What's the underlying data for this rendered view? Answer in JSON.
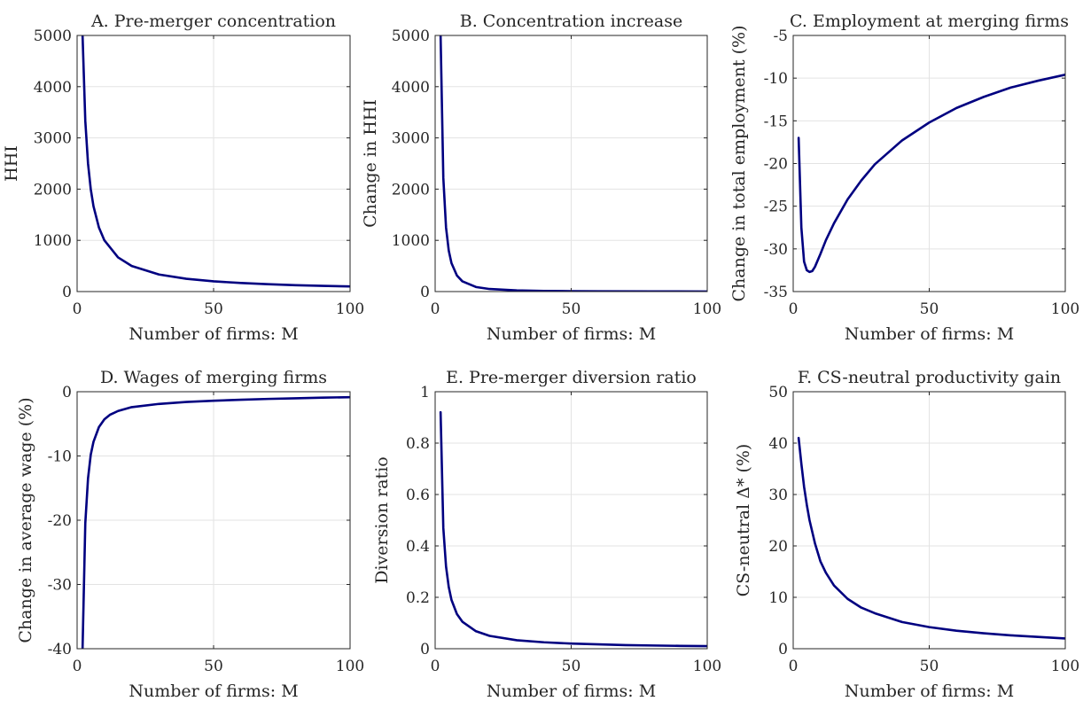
{
  "colors": {
    "line": "#000080",
    "axis": "#262626",
    "grid": "#e3e3e3",
    "background": "#ffffff"
  },
  "chart_data": [
    {
      "panel": "A",
      "type": "line",
      "title": "A. Pre-merger concentration",
      "xlabel": "Number of firms: M",
      "ylabel": "HHI",
      "xlim": [
        0,
        100
      ],
      "ylim": [
        0,
        5000
      ],
      "xticks": [
        0,
        50,
        100
      ],
      "yticks": [
        0,
        1000,
        2000,
        3000,
        4000,
        5000
      ],
      "ytick_labels": [
        "0",
        "1000",
        "2000",
        "3000",
        "4000",
        "5000"
      ],
      "grid": true,
      "x": [
        2,
        3,
        4,
        5,
        6,
        8,
        10,
        15,
        20,
        30,
        40,
        50,
        60,
        70,
        80,
        90,
        100
      ],
      "y": [
        5000,
        3333,
        2500,
        2000,
        1667,
        1250,
        1000,
        667,
        500,
        333,
        250,
        200,
        167,
        143,
        125,
        111,
        100
      ]
    },
    {
      "panel": "B",
      "type": "line",
      "title": "B. Concentration increase",
      "xlabel": "Number of firms: M",
      "ylabel": "Change in HHI",
      "xlim": [
        0,
        100
      ],
      "ylim": [
        0,
        5000
      ],
      "xticks": [
        0,
        50,
        100
      ],
      "yticks": [
        0,
        1000,
        2000,
        3000,
        4000,
        5000
      ],
      "ytick_labels": [
        "0",
        "1000",
        "2000",
        "3000",
        "4000",
        "5000"
      ],
      "grid": true,
      "x": [
        2,
        3,
        4,
        5,
        6,
        8,
        10,
        15,
        20,
        30,
        40,
        50,
        60,
        80,
        100
      ],
      "y": [
        5000,
        2222,
        1250,
        800,
        556,
        313,
        200,
        89,
        50,
        22,
        12.5,
        8,
        5.6,
        3.1,
        2
      ]
    },
    {
      "panel": "C",
      "type": "line",
      "title": "C. Employment at merging firms",
      "xlabel": "Number of firms: M",
      "ylabel": "Change in total employment (%)",
      "xlim": [
        0,
        100
      ],
      "ylim": [
        -35,
        -5
      ],
      "xticks": [
        0,
        50,
        100
      ],
      "yticks": [
        -35,
        -30,
        -25,
        -20,
        -15,
        -10,
        -5
      ],
      "ytick_labels": [
        "-35",
        "-30",
        "-25",
        "-20",
        "-15",
        "-10",
        "-5"
      ],
      "grid": true,
      "x": [
        2,
        3,
        4,
        5,
        6,
        7,
        8,
        10,
        12,
        15,
        20,
        25,
        30,
        40,
        50,
        60,
        70,
        80,
        90,
        100
      ],
      "y": [
        -17,
        -27.5,
        -31.5,
        -32.5,
        -32.7,
        -32.6,
        -32.1,
        -30.6,
        -29,
        -27,
        -24.2,
        -22,
        -20.1,
        -17.3,
        -15.2,
        -13.5,
        -12.2,
        -11.1,
        -10.3,
        -9.6
      ]
    },
    {
      "panel": "D",
      "type": "line",
      "title": "D. Wages of merging firms",
      "xlabel": "Number of firms: M",
      "ylabel": "Change in average wage (%)",
      "xlim": [
        0,
        100
      ],
      "ylim": [
        -40,
        0
      ],
      "xticks": [
        0,
        50,
        100
      ],
      "yticks": [
        -40,
        -30,
        -20,
        -10,
        0
      ],
      "ytick_labels": [
        "-40",
        "-30",
        "-20",
        "-10",
        "0"
      ],
      "grid": true,
      "x": [
        2,
        3,
        4,
        5,
        6,
        8,
        10,
        12,
        15,
        20,
        30,
        40,
        50,
        60,
        70,
        80,
        90,
        100
      ],
      "y": [
        -40,
        -20.5,
        -13.5,
        -9.8,
        -7.8,
        -5.5,
        -4.3,
        -3.6,
        -3,
        -2.4,
        -1.9,
        -1.6,
        -1.4,
        -1.25,
        -1.12,
        -1.02,
        -0.92,
        -0.85
      ]
    },
    {
      "panel": "E",
      "type": "line",
      "title": "E. Pre-merger diversion ratio",
      "xlabel": "Number of firms: M",
      "ylabel": "Diversion ratio",
      "xlim": [
        0,
        100
      ],
      "ylim": [
        0,
        1
      ],
      "xticks": [
        0,
        50,
        100
      ],
      "yticks": [
        0,
        0.2,
        0.4,
        0.6,
        0.8,
        1
      ],
      "ytick_labels": [
        "0",
        "0.2",
        "0.4",
        "0.6",
        "0.8",
        "1"
      ],
      "grid": true,
      "x": [
        2,
        3,
        4,
        5,
        6,
        8,
        10,
        15,
        20,
        30,
        40,
        50,
        60,
        70,
        80,
        90,
        100
      ],
      "y": [
        0.92,
        0.47,
        0.32,
        0.24,
        0.19,
        0.135,
        0.105,
        0.068,
        0.05,
        0.033,
        0.025,
        0.02,
        0.017,
        0.014,
        0.0125,
        0.011,
        0.01
      ]
    },
    {
      "panel": "F",
      "type": "line",
      "title": "F. CS-neutral productivity gain",
      "xlabel": "Number of firms: M",
      "ylabel": "CS-neutral Δ* (%)",
      "xlim": [
        0,
        100
      ],
      "ylim": [
        0,
        50
      ],
      "xticks": [
        0,
        50,
        100
      ],
      "yticks": [
        0,
        10,
        20,
        30,
        40,
        50
      ],
      "ytick_labels": [
        "0",
        "10",
        "20",
        "30",
        "40",
        "50"
      ],
      "grid": true,
      "x": [
        2,
        3,
        4,
        5,
        6,
        8,
        10,
        12,
        15,
        20,
        25,
        30,
        40,
        50,
        60,
        70,
        80,
        90,
        100
      ],
      "y": [
        41,
        36,
        31.5,
        28,
        25,
        20.5,
        17,
        14.8,
        12.3,
        9.7,
        8,
        6.9,
        5.2,
        4.2,
        3.5,
        3,
        2.6,
        2.3,
        2
      ]
    }
  ]
}
